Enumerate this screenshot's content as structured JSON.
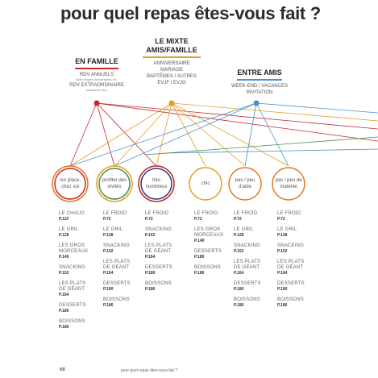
{
  "title": "pour quel repas êtes-vous fait ?",
  "groups": [
    {
      "title": "EN FAMILLE",
      "entries": [
        {
          "label": "RDV ANNUELS",
          "note": "Noël, Pâques, anniversaires, etc."
        },
        {
          "label": "RDV EXTRAORDINAIRE",
          "note": "(naissance, etc.)"
        }
      ]
    },
    {
      "title": "LE MIXTE AMIS/FAMILLE",
      "entries": [
        {
          "label": "ANNIVERSAIRE"
        },
        {
          "label": "MARIAGE"
        },
        {
          "label": "BAPTÊMES / AUTRES"
        },
        {
          "label": "EVJF / EVJG"
        }
      ]
    },
    {
      "title": "ENTRE AMIS",
      "entries": [
        {
          "label": "WEEK-END / VACANCES"
        },
        {
          "label": "INVITATION"
        }
      ]
    }
  ],
  "columns": [
    {
      "label": "sur place, chez soi",
      "items": [
        {
          "name": "LE CHAUD",
          "page": "P.110"
        },
        {
          "name": "LE GRIL",
          "page": "P.128"
        },
        {
          "name": "LES GROS MORCEAUX",
          "page": "P.140"
        },
        {
          "name": "SNACKING",
          "page": "P.152"
        },
        {
          "name": "LES PLATS DE GÉANT",
          "page": "P.164"
        },
        {
          "name": "DESSERTS",
          "page": "P.180"
        },
        {
          "name": "BOISSONS",
          "page": "P.186"
        }
      ]
    },
    {
      "label": "profiter des invités",
      "items": [
        {
          "name": "LE FROID",
          "page": "P.72"
        },
        {
          "name": "LE GRIL",
          "page": "P.128"
        },
        {
          "name": "SNACKING",
          "page": "P.152"
        },
        {
          "name": "LES PLATS DE GÉANT",
          "page": "P.164"
        },
        {
          "name": "DESSERTS",
          "page": "P.180"
        },
        {
          "name": "BOISSONS",
          "page": "P.186"
        }
      ]
    },
    {
      "label": "très nombreux",
      "items": [
        {
          "name": "LE FROID",
          "page": "P.72"
        },
        {
          "name": "SNACKING",
          "page": "P.152"
        },
        {
          "name": "LES PLATS DE GÉANT",
          "page": "P.164"
        },
        {
          "name": "DESSERTS",
          "page": "P.180"
        },
        {
          "name": "BOISSONS",
          "page": "P.186"
        }
      ]
    },
    {
      "label": "chic",
      "items": [
        {
          "name": "LE FROID",
          "page": "P.72"
        },
        {
          "name": "LES GROS MORCEAUX",
          "page": "P.140"
        },
        {
          "name": "DESSERTS",
          "page": "P.180"
        },
        {
          "name": "BOISSONS",
          "page": "P.186"
        }
      ]
    },
    {
      "label": "pas / peu d'aide",
      "items": [
        {
          "name": "LE FROID",
          "page": "P.72"
        },
        {
          "name": "LE GRIL",
          "page": "P.128"
        },
        {
          "name": "SNACKING",
          "page": "P.152"
        },
        {
          "name": "LES PLATS DE GÉANT",
          "page": "P.164"
        },
        {
          "name": "DESSERTS",
          "page": "P.180"
        },
        {
          "name": "BOISSONS",
          "page": "P.186"
        }
      ]
    },
    {
      "label": "pas / peu de matériel",
      "items": [
        {
          "name": "LE FROID",
          "page": "P.72"
        },
        {
          "name": "LE GRIL",
          "page": "P.128"
        },
        {
          "name": "SNACKING",
          "page": "P.152"
        },
        {
          "name": "LES PLATS DE GÉANT",
          "page": "P.164"
        },
        {
          "name": "DESSERTS",
          "page": "P.180"
        },
        {
          "name": "BOISSONS",
          "page": "P.186"
        }
      ]
    }
  ],
  "footer": {
    "page_number": "68",
    "running_title": "pour quel repas êtes-vous fait ?"
  }
}
